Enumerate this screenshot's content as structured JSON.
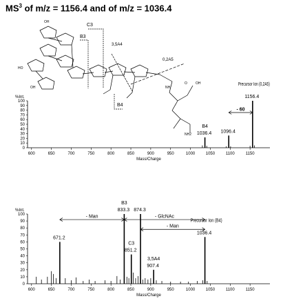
{
  "title": {
    "prefix": "MS",
    "sup": "3",
    "rest": " of m/z = 1156.4 and of m/z = 1036.4"
  },
  "structure": {
    "fragment_labels": [
      "C3",
      "B3",
      "3,5A4",
      "0,2A5",
      "B4"
    ],
    "ring_substituents": [
      "HO",
      "OH",
      "O",
      "NH",
      "NH2",
      "OH",
      "OH"
    ]
  },
  "chart_data": [
    {
      "type": "bar",
      "panel": "top",
      "ylabel": "%Int.",
      "xlabel": "Mass/Charge",
      "xlim": [
        590,
        1200
      ],
      "ylim": [
        0,
        100
      ],
      "x_ticks": [
        600,
        650,
        700,
        750,
        800,
        850,
        900,
        950,
        1000,
        1050,
        1100,
        1150
      ],
      "y_ticks": [
        0,
        10,
        20,
        30,
        40,
        50,
        60,
        70,
        80,
        90,
        100
      ],
      "peaks": [
        {
          "x": 1036.4,
          "y": 22,
          "label": "1036.4",
          "tag": "B4"
        },
        {
          "x": 1096.4,
          "y": 26,
          "label": "1096.4"
        },
        {
          "x": 1156.4,
          "y": 100,
          "label": "1156.4",
          "tag": "Precursor Ion (0,2A5)"
        },
        {
          "x": 1030,
          "y": 5
        },
        {
          "x": 1041,
          "y": 4
        },
        {
          "x": 1090,
          "y": 3
        },
        {
          "x": 1101,
          "y": 3
        },
        {
          "x": 1150,
          "y": 4
        },
        {
          "x": 1161,
          "y": 5
        }
      ],
      "annotations": [
        {
          "text": "- 60",
          "from": 1096.4,
          "to": 1156.4
        }
      ]
    },
    {
      "type": "bar",
      "panel": "bottom",
      "ylabel": "%Int.",
      "xlabel": "Mass/Charge",
      "xlim": [
        590,
        1200
      ],
      "ylim": [
        0,
        100
      ],
      "x_ticks": [
        600,
        650,
        700,
        750,
        800,
        850,
        900,
        950,
        1000,
        1050,
        1100,
        1150
      ],
      "y_ticks": [
        0,
        10,
        20,
        30,
        40,
        50,
        60,
        70,
        80,
        90,
        100
      ],
      "peaks": [
        {
          "x": 671.2,
          "y": 60,
          "label": "671.2"
        },
        {
          "x": 833.3,
          "y": 100,
          "label": "833.3",
          "tag": "B3"
        },
        {
          "x": 851.2,
          "y": 42,
          "label": "851.2",
          "tag": "C3"
        },
        {
          "x": 874.3,
          "y": 100,
          "label": "874.3"
        },
        {
          "x": 907.4,
          "y": 20,
          "label": "907.4",
          "tag": "3,5A4"
        },
        {
          "x": 1036.4,
          "y": 67,
          "label": "1036.4",
          "tag": "Precursor Ion (B4)"
        },
        {
          "x": 612,
          "y": 10
        },
        {
          "x": 625,
          "y": 6
        },
        {
          "x": 640,
          "y": 10
        },
        {
          "x": 650,
          "y": 18
        },
        {
          "x": 655,
          "y": 14
        },
        {
          "x": 662,
          "y": 8
        },
        {
          "x": 685,
          "y": 8
        },
        {
          "x": 700,
          "y": 5
        },
        {
          "x": 712,
          "y": 9
        },
        {
          "x": 730,
          "y": 4
        },
        {
          "x": 745,
          "y": 6
        },
        {
          "x": 760,
          "y": 4
        },
        {
          "x": 785,
          "y": 5
        },
        {
          "x": 800,
          "y": 4
        },
        {
          "x": 815,
          "y": 11
        },
        {
          "x": 823,
          "y": 6
        },
        {
          "x": 840,
          "y": 10
        },
        {
          "x": 845,
          "y": 8
        },
        {
          "x": 856,
          "y": 16
        },
        {
          "x": 862,
          "y": 8
        },
        {
          "x": 868,
          "y": 11
        },
        {
          "x": 880,
          "y": 6
        },
        {
          "x": 886,
          "y": 8
        },
        {
          "x": 893,
          "y": 6
        },
        {
          "x": 900,
          "y": 8
        },
        {
          "x": 914,
          "y": 5
        },
        {
          "x": 928,
          "y": 4
        },
        {
          "x": 950,
          "y": 3
        },
        {
          "x": 975,
          "y": 3
        },
        {
          "x": 995,
          "y": 3
        },
        {
          "x": 1017,
          "y": 4
        },
        {
          "x": 1031,
          "y": 5
        },
        {
          "x": 1042,
          "y": 4
        }
      ],
      "annotations": [
        {
          "text": "- Man",
          "from": 671.2,
          "to": 833.3
        },
        {
          "text": "- GlcNAc",
          "from": 833.3,
          "to": 1036.4
        },
        {
          "text": "- Man",
          "from": 874.3,
          "to": 1036.4
        }
      ]
    }
  ]
}
